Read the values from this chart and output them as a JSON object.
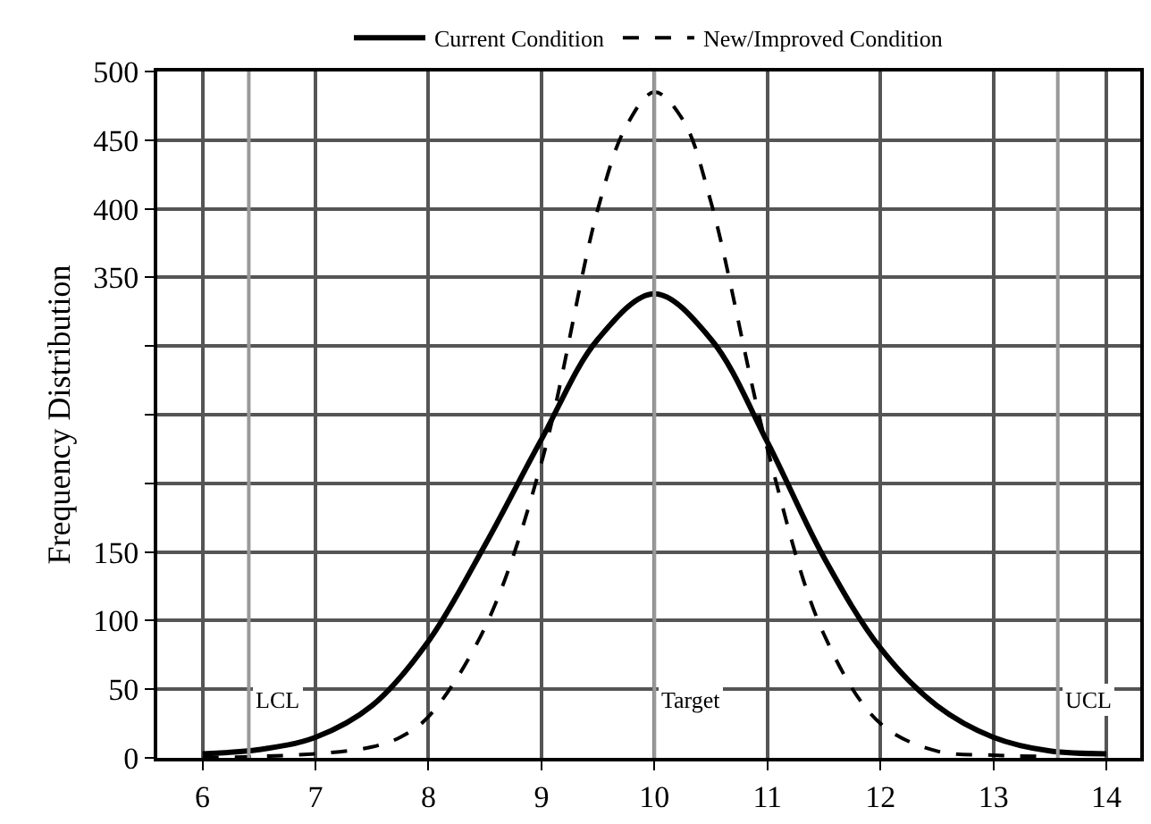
{
  "chart_data": {
    "type": "line",
    "ylabel": "Frequency Distribution",
    "x": [
      6,
      6.5,
      7,
      7.5,
      8,
      8.5,
      9,
      9.5,
      10,
      10.5,
      11,
      11.5,
      12,
      12.5,
      13,
      13.5,
      14
    ],
    "series": [
      {
        "name": "Current Condition",
        "color": "#000000",
        "line_style": "solid",
        "values": [
          3,
          6,
          15,
          38,
          85,
          155,
          232,
          305,
          338,
          305,
          230,
          146,
          80,
          38,
          15,
          5,
          3
        ]
      },
      {
        "name": "New/Improved Condition",
        "color": "#000000",
        "line_style": "dashed",
        "x": [
          6,
          7,
          7.5,
          7.75,
          8,
          8.5,
          9,
          9.5,
          9.75,
          10,
          10.25,
          10.5,
          11,
          11.5,
          12,
          12.5,
          13,
          13.5
        ],
        "values": [
          0,
          3,
          8,
          15,
          30,
          95,
          215,
          400,
          460,
          485,
          465,
          405,
          225,
          90,
          25,
          5,
          2,
          1
        ]
      }
    ],
    "xlim": [
      5.6,
      14.3
    ],
    "xticks": [
      6,
      7,
      8,
      9,
      10,
      11,
      12,
      13,
      14
    ],
    "ylim": [
      0,
      500
    ],
    "yticks": [
      0,
      50,
      100,
      150,
      {
        "value": 200,
        "label": null
      },
      {
        "value": 250,
        "label": null
      },
      {
        "value": 300,
        "label": null
      },
      350,
      400,
      450,
      500
    ],
    "ref_lines": [
      {
        "axis": "x",
        "value": 6.41,
        "label": "LCL",
        "color": "#999999"
      },
      {
        "axis": "x",
        "value": 10,
        "label": "Target",
        "color": "#999999"
      },
      {
        "axis": "x",
        "value": 13.57,
        "label": "UCL",
        "color": "#999999"
      }
    ],
    "grid": true,
    "legend": "top"
  }
}
